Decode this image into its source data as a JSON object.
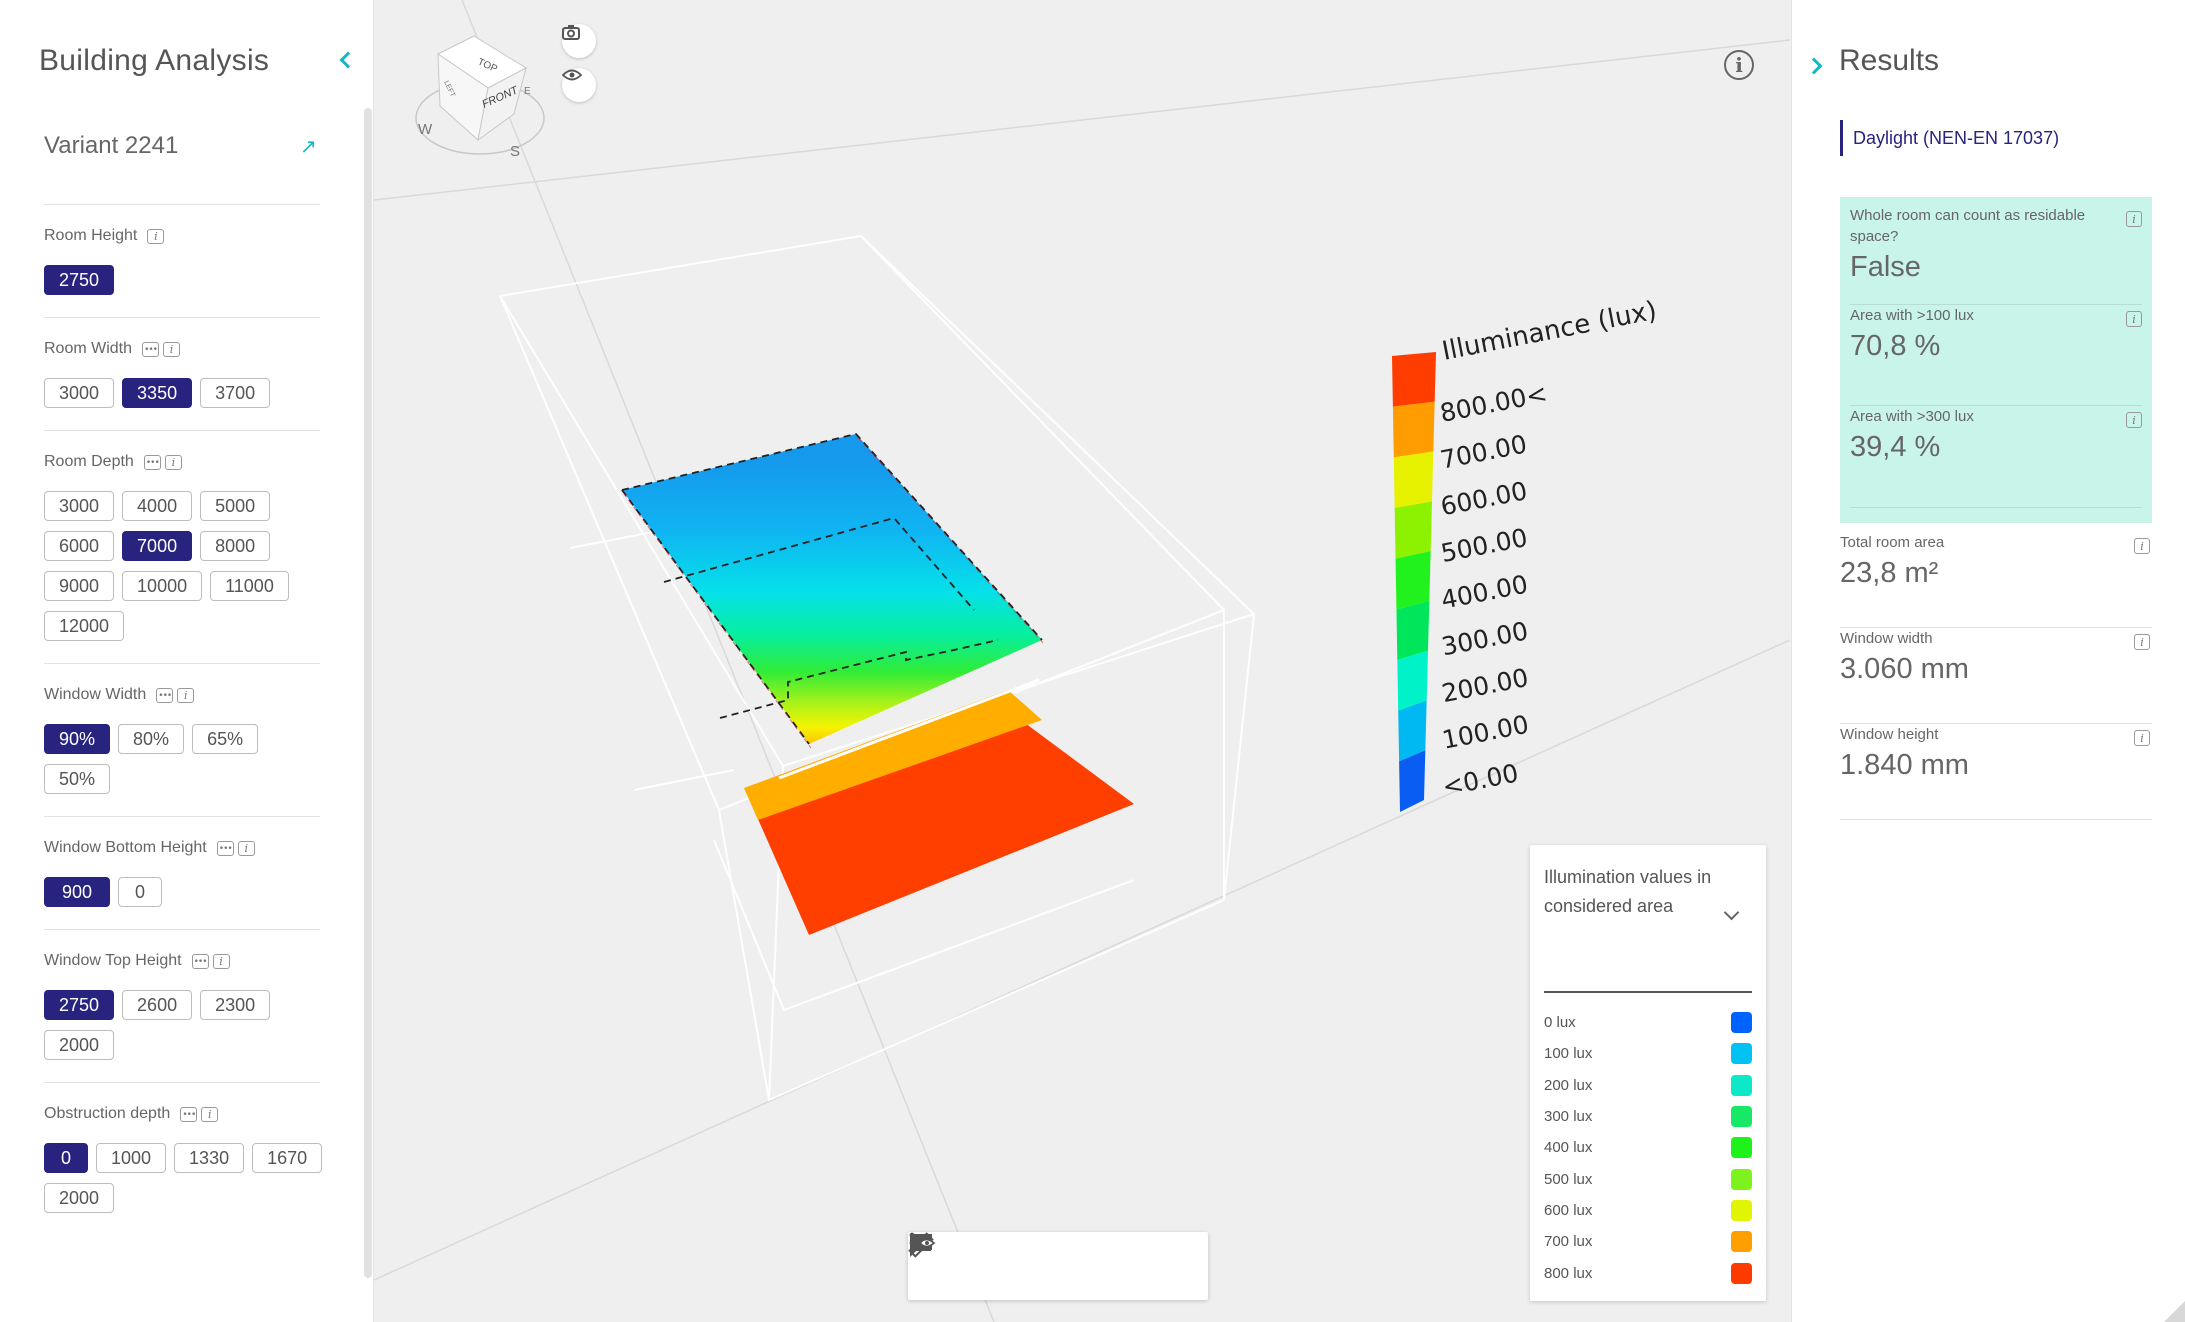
{
  "left_panel": {
    "title": "Building Analysis",
    "variant": "Variant 2241",
    "params": [
      {
        "label": "Room Height",
        "has_toggle": false,
        "options": [
          {
            "v": "2750",
            "active": true
          }
        ]
      },
      {
        "label": "Room Width",
        "has_toggle": true,
        "options": [
          {
            "v": "3000"
          },
          {
            "v": "3350",
            "active": true
          },
          {
            "v": "3700"
          }
        ]
      },
      {
        "label": "Room Depth",
        "has_toggle": true,
        "options": [
          {
            "v": "3000"
          },
          {
            "v": "4000"
          },
          {
            "v": "5000"
          },
          {
            "v": "6000"
          },
          {
            "v": "7000",
            "active": true
          },
          {
            "v": "8000"
          },
          {
            "v": "9000"
          },
          {
            "v": "10000"
          },
          {
            "v": "11000"
          },
          {
            "v": "12000"
          }
        ]
      },
      {
        "label": "Window Width",
        "has_toggle": true,
        "options": [
          {
            "v": "90%",
            "active": true
          },
          {
            "v": "80%"
          },
          {
            "v": "65%"
          },
          {
            "v": "50%"
          }
        ]
      },
      {
        "label": "Window Bottom Height",
        "has_toggle": true,
        "options": [
          {
            "v": "900",
            "active": true
          },
          {
            "v": "0",
            "small": true
          }
        ]
      },
      {
        "label": "Window Top Height",
        "has_toggle": true,
        "options": [
          {
            "v": "2750",
            "active": true
          },
          {
            "v": "2600"
          },
          {
            "v": "2300"
          },
          {
            "v": "2000"
          }
        ]
      },
      {
        "label": "Obstruction depth",
        "has_toggle": true,
        "options": [
          {
            "v": "0",
            "active": true,
            "small": true
          },
          {
            "v": "1000"
          },
          {
            "v": "1330"
          },
          {
            "v": "1670"
          },
          {
            "v": "2000"
          }
        ]
      }
    ]
  },
  "viewport": {
    "view_cube": {
      "top": "TOP",
      "front": "FRONT",
      "left": "LEFT",
      "right": "E",
      "west": "W",
      "south": "S"
    },
    "scale": {
      "title": "Illuminance (lux)",
      "ticks": [
        "800.00<",
        "700.00",
        "600.00",
        "500.00",
        "400.00",
        "300.00",
        "200.00",
        "100.00",
        "<0.00"
      ],
      "colors": [
        "#ff3d00",
        "#ff9c00",
        "#e6f200",
        "#8cf200",
        "#21f21d",
        "#00e65a",
        "#00f2c8",
        "#00b8f2",
        "#0a5df2"
      ]
    },
    "legend": {
      "title": "Illumination values in considered area",
      "items": [
        {
          "label": "0 lux",
          "color": "#0062ff"
        },
        {
          "label": "100 lux",
          "color": "#00c3f3"
        },
        {
          "label": "200 lux",
          "color": "#0de8c8"
        },
        {
          "label": "300 lux",
          "color": "#17e866"
        },
        {
          "label": "400 lux",
          "color": "#1ef21a"
        },
        {
          "label": "500 lux",
          "color": "#7df21c"
        },
        {
          "label": "600 lux",
          "color": "#e2f500"
        },
        {
          "label": "700 lux",
          "color": "#ffa000"
        },
        {
          "label": "800 lux",
          "color": "#ff3b00"
        }
      ]
    },
    "toolbar": [
      "ruler-icon",
      "comment-icon",
      "comment-view-icon",
      "more-icon"
    ]
  },
  "right_panel": {
    "title": "Results",
    "tab": "Daylight (NEN-EN 17037)",
    "results": [
      {
        "label": "Whole room can count as residable space?",
        "value": "False",
        "highlight": true
      },
      {
        "label": "Area with >100 lux",
        "value": "70,8 %",
        "highlight": true
      },
      {
        "label": "Area with >300 lux",
        "value": "39,4 %",
        "highlight": true
      },
      {
        "label": "Total room area",
        "value": "23,8 m²",
        "highlight": false
      },
      {
        "label": "Window width",
        "value": "3.060 mm",
        "highlight": false
      },
      {
        "label": "Window height",
        "value": "1.840 mm",
        "highlight": false
      }
    ]
  },
  "colors": {
    "accent": "#14b8c4",
    "active_chip": "#27237f",
    "result_highlight": "#c9f4ea"
  }
}
